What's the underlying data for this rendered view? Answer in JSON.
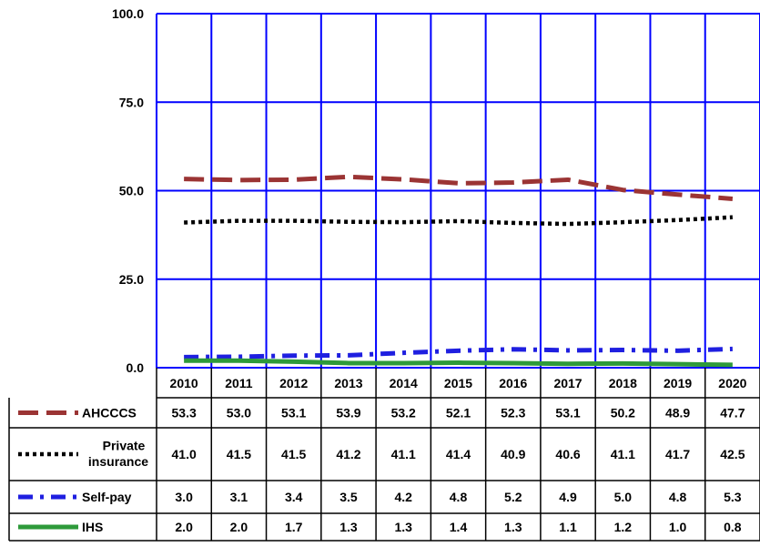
{
  "chart_data": {
    "type": "line",
    "title": "",
    "xlabel": "",
    "ylabel": "",
    "ylim": [
      0,
      100
    ],
    "yticks": [
      "0.0",
      "25.0",
      "50.0",
      "75.0",
      "100.0"
    ],
    "ytick_values": [
      0,
      25,
      50,
      75,
      100
    ],
    "grid": true,
    "legend_placement": "data-table-left",
    "categories": [
      "2010",
      "2011",
      "2012",
      "2013",
      "2014",
      "2015",
      "2016",
      "2017",
      "2018",
      "2019",
      "2020"
    ],
    "series": [
      {
        "name": "AHCCCS",
        "color": "#9b3434",
        "style": "dashed",
        "values": [
          53.3,
          53.0,
          53.1,
          53.9,
          53.2,
          52.1,
          52.3,
          53.1,
          50.2,
          48.9,
          47.7
        ],
        "labels": [
          "53.3",
          "53.0",
          "53.1",
          "53.9",
          "53.2",
          "52.1",
          "52.3",
          "53.1",
          "50.2",
          "48.9",
          "47.7"
        ]
      },
      {
        "name": "Private insurance",
        "color": "#000000",
        "style": "dotted",
        "values": [
          41.0,
          41.5,
          41.5,
          41.2,
          41.1,
          41.4,
          40.9,
          40.6,
          41.1,
          41.7,
          42.5
        ],
        "labels": [
          "41.0",
          "41.5",
          "41.5",
          "41.2",
          "41.1",
          "41.4",
          "40.9",
          "40.6",
          "41.1",
          "41.7",
          "42.5"
        ]
      },
      {
        "name": "Self-pay",
        "color": "#1f1fe0",
        "style": "dash-dot",
        "values": [
          3.0,
          3.1,
          3.4,
          3.5,
          4.2,
          4.8,
          5.2,
          4.9,
          5.0,
          4.8,
          5.3
        ],
        "labels": [
          "3.0",
          "3.1",
          "3.4",
          "3.5",
          "4.2",
          "4.8",
          "5.2",
          "4.9",
          "5.0",
          "4.8",
          "5.3"
        ]
      },
      {
        "name": "IHS",
        "color": "#2e9a3a",
        "style": "solid",
        "values": [
          2.0,
          2.0,
          1.7,
          1.3,
          1.3,
          1.4,
          1.3,
          1.1,
          1.2,
          1.0,
          0.8
        ],
        "labels": [
          "2.0",
          "2.0",
          "1.7",
          "1.3",
          "1.3",
          "1.4",
          "1.3",
          "1.1",
          "1.2",
          "1.0",
          "0.8"
        ]
      }
    ],
    "colors": {
      "grid": "#0000ff",
      "table_border": "#000000"
    }
  }
}
